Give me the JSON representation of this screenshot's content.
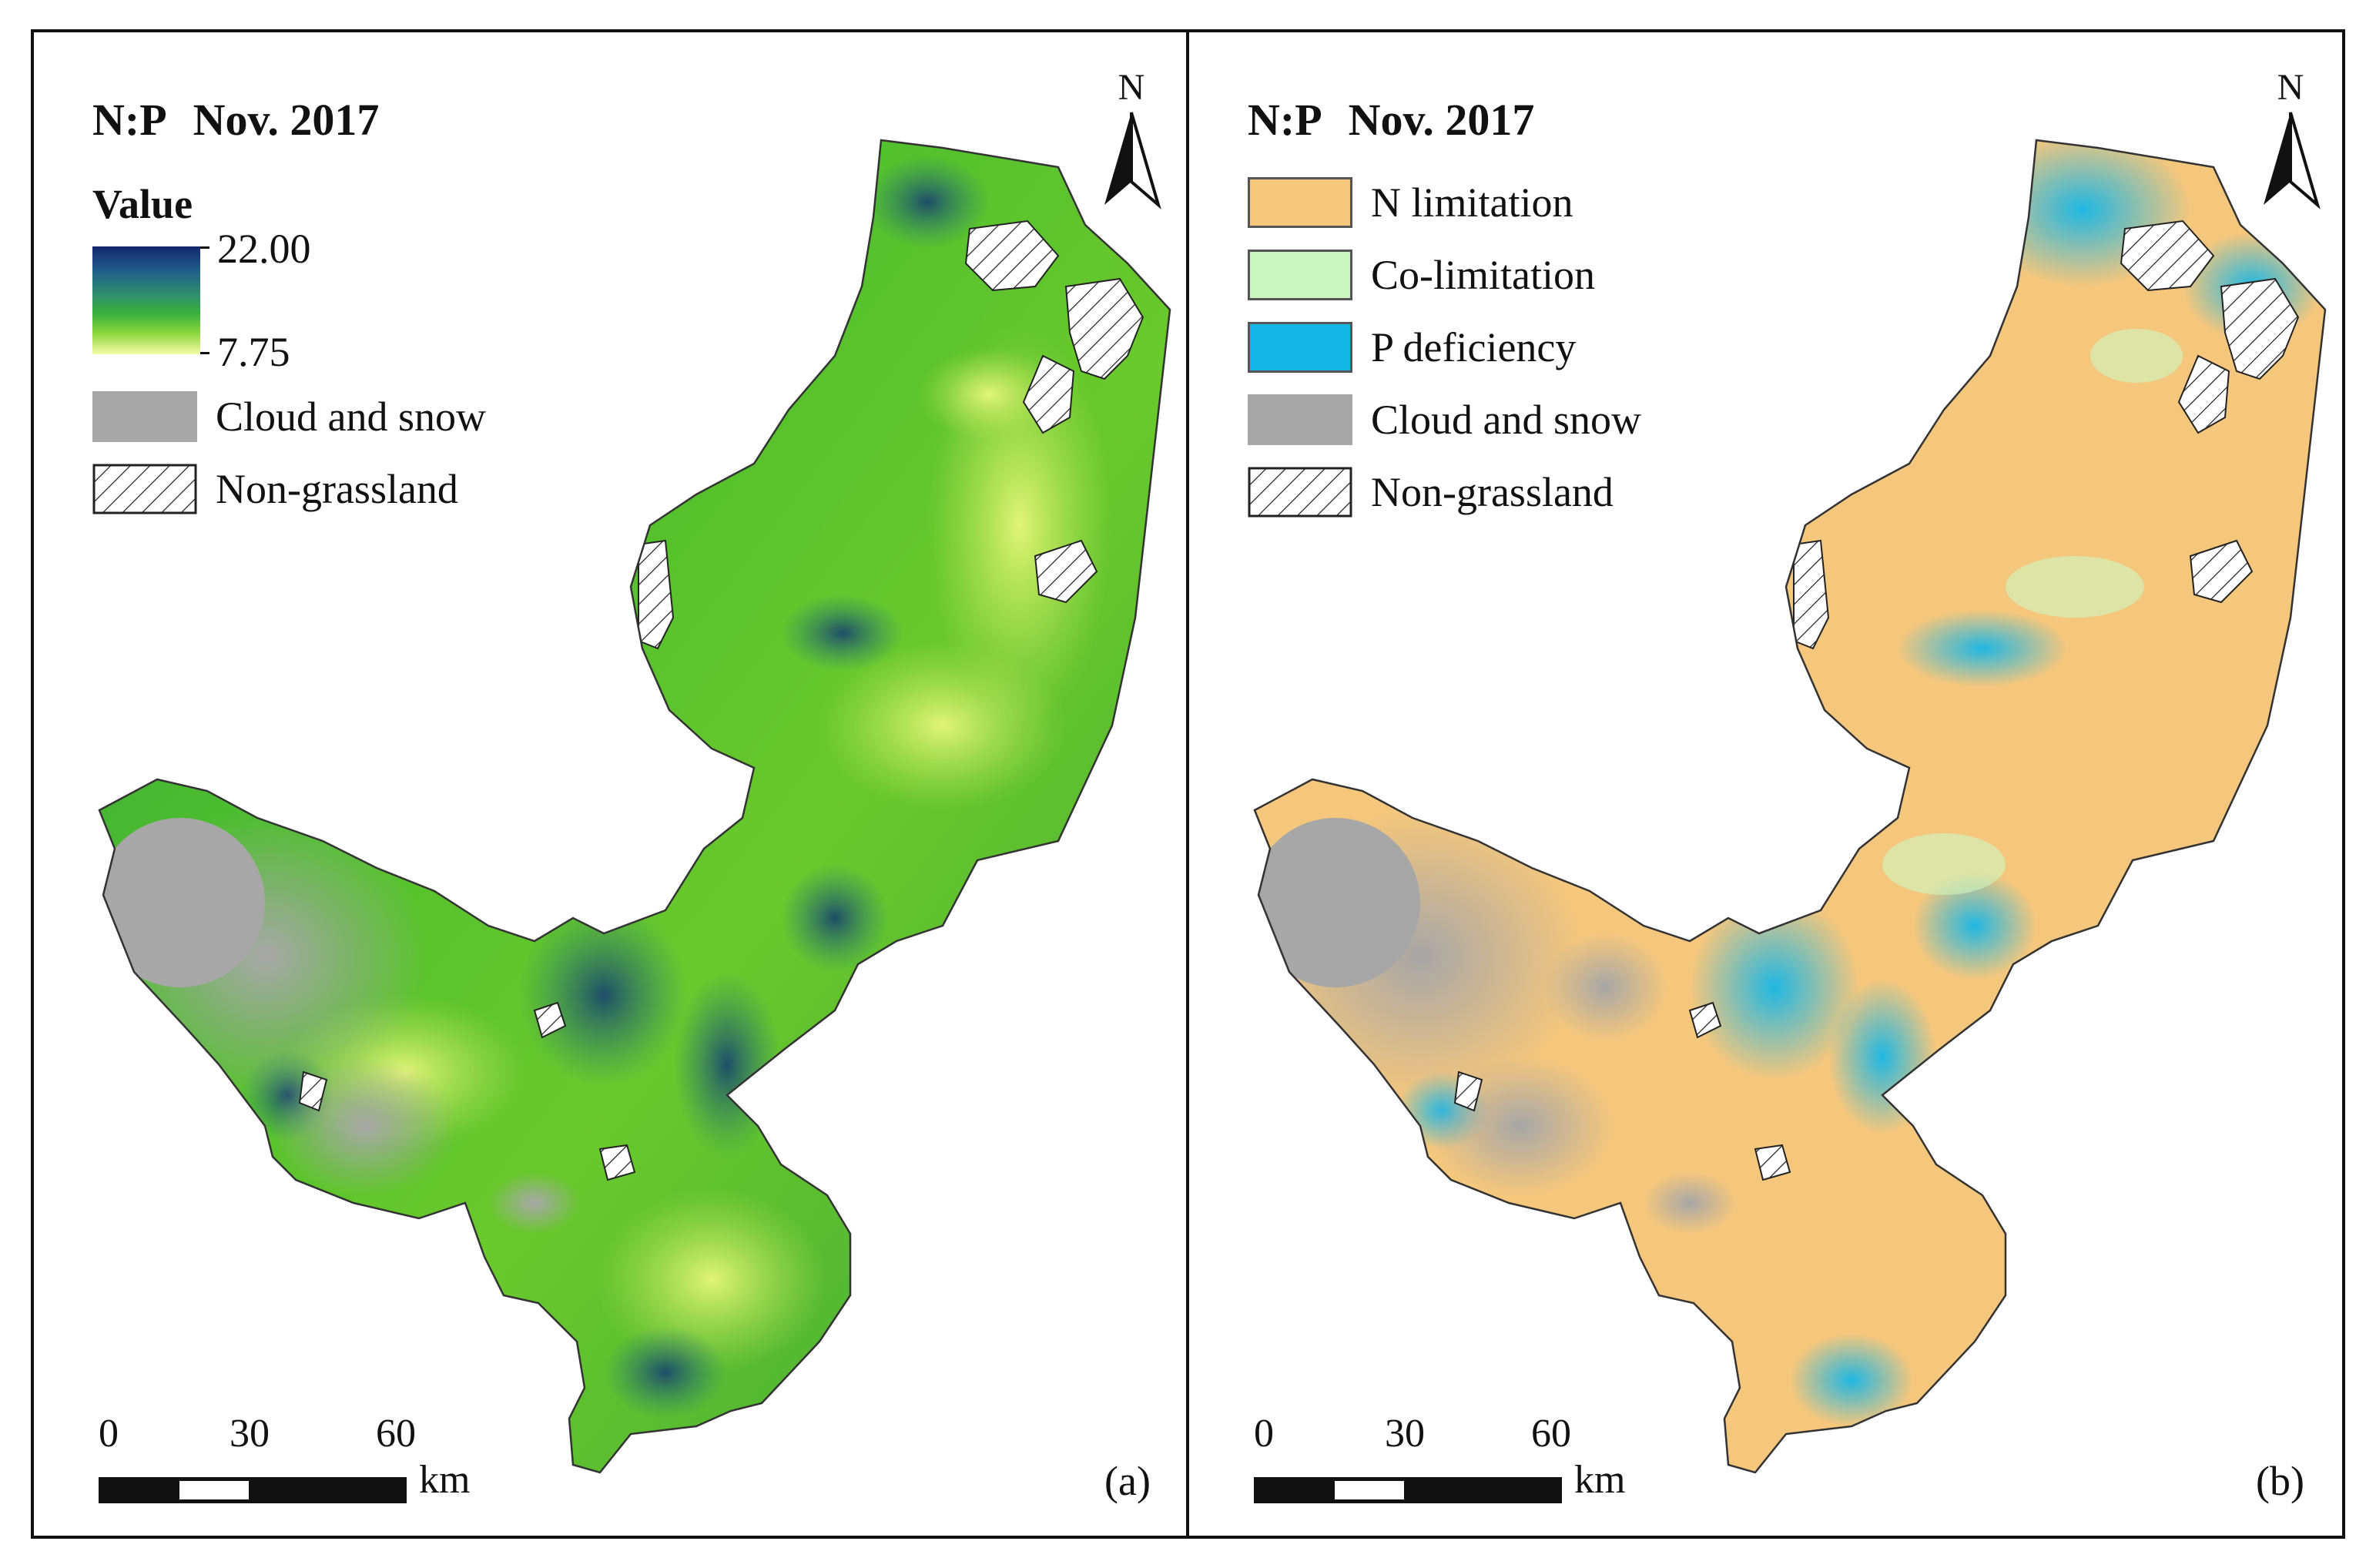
{
  "panels": [
    {
      "id": "a",
      "title_ratio": "N:P",
      "title_date": "Nov. 2017",
      "legend_heading": "Value",
      "ramp_max": "22.00",
      "ramp_min": "7.75",
      "legend_items": [
        {
          "label": "Cloud and snow",
          "swatch": "cloud"
        },
        {
          "label": "Non-grassland",
          "swatch": "hatch"
        }
      ],
      "north_label": "N",
      "scale": {
        "ticks": [
          "0",
          "30",
          "60"
        ],
        "unit": "km"
      },
      "panel_label": "(a)"
    },
    {
      "id": "b",
      "title_ratio": "N:P",
      "title_date": "Nov. 2017",
      "legend_items": [
        {
          "label": "N limitation",
          "swatch": "n"
        },
        {
          "label": "Co-limitation",
          "swatch": "co"
        },
        {
          "label": "P deficiency",
          "swatch": "p"
        },
        {
          "label": "Cloud and snow",
          "swatch": "cloud"
        },
        {
          "label": "Non-grassland",
          "swatch": "hatch"
        }
      ],
      "north_label": "N",
      "scale": {
        "ticks": [
          "0",
          "30",
          "60"
        ],
        "unit": "km"
      },
      "panel_label": "(b)"
    }
  ],
  "colors": {
    "n_limitation": "#f4c77d",
    "co_limitation": "#cdf7c2",
    "p_deficiency": "#15b6e8",
    "cloud_snow": "#a7a7a7",
    "ramp_high": "#13276b",
    "ramp_mid": "#37b03c",
    "ramp_low": "#f6fba8"
  }
}
